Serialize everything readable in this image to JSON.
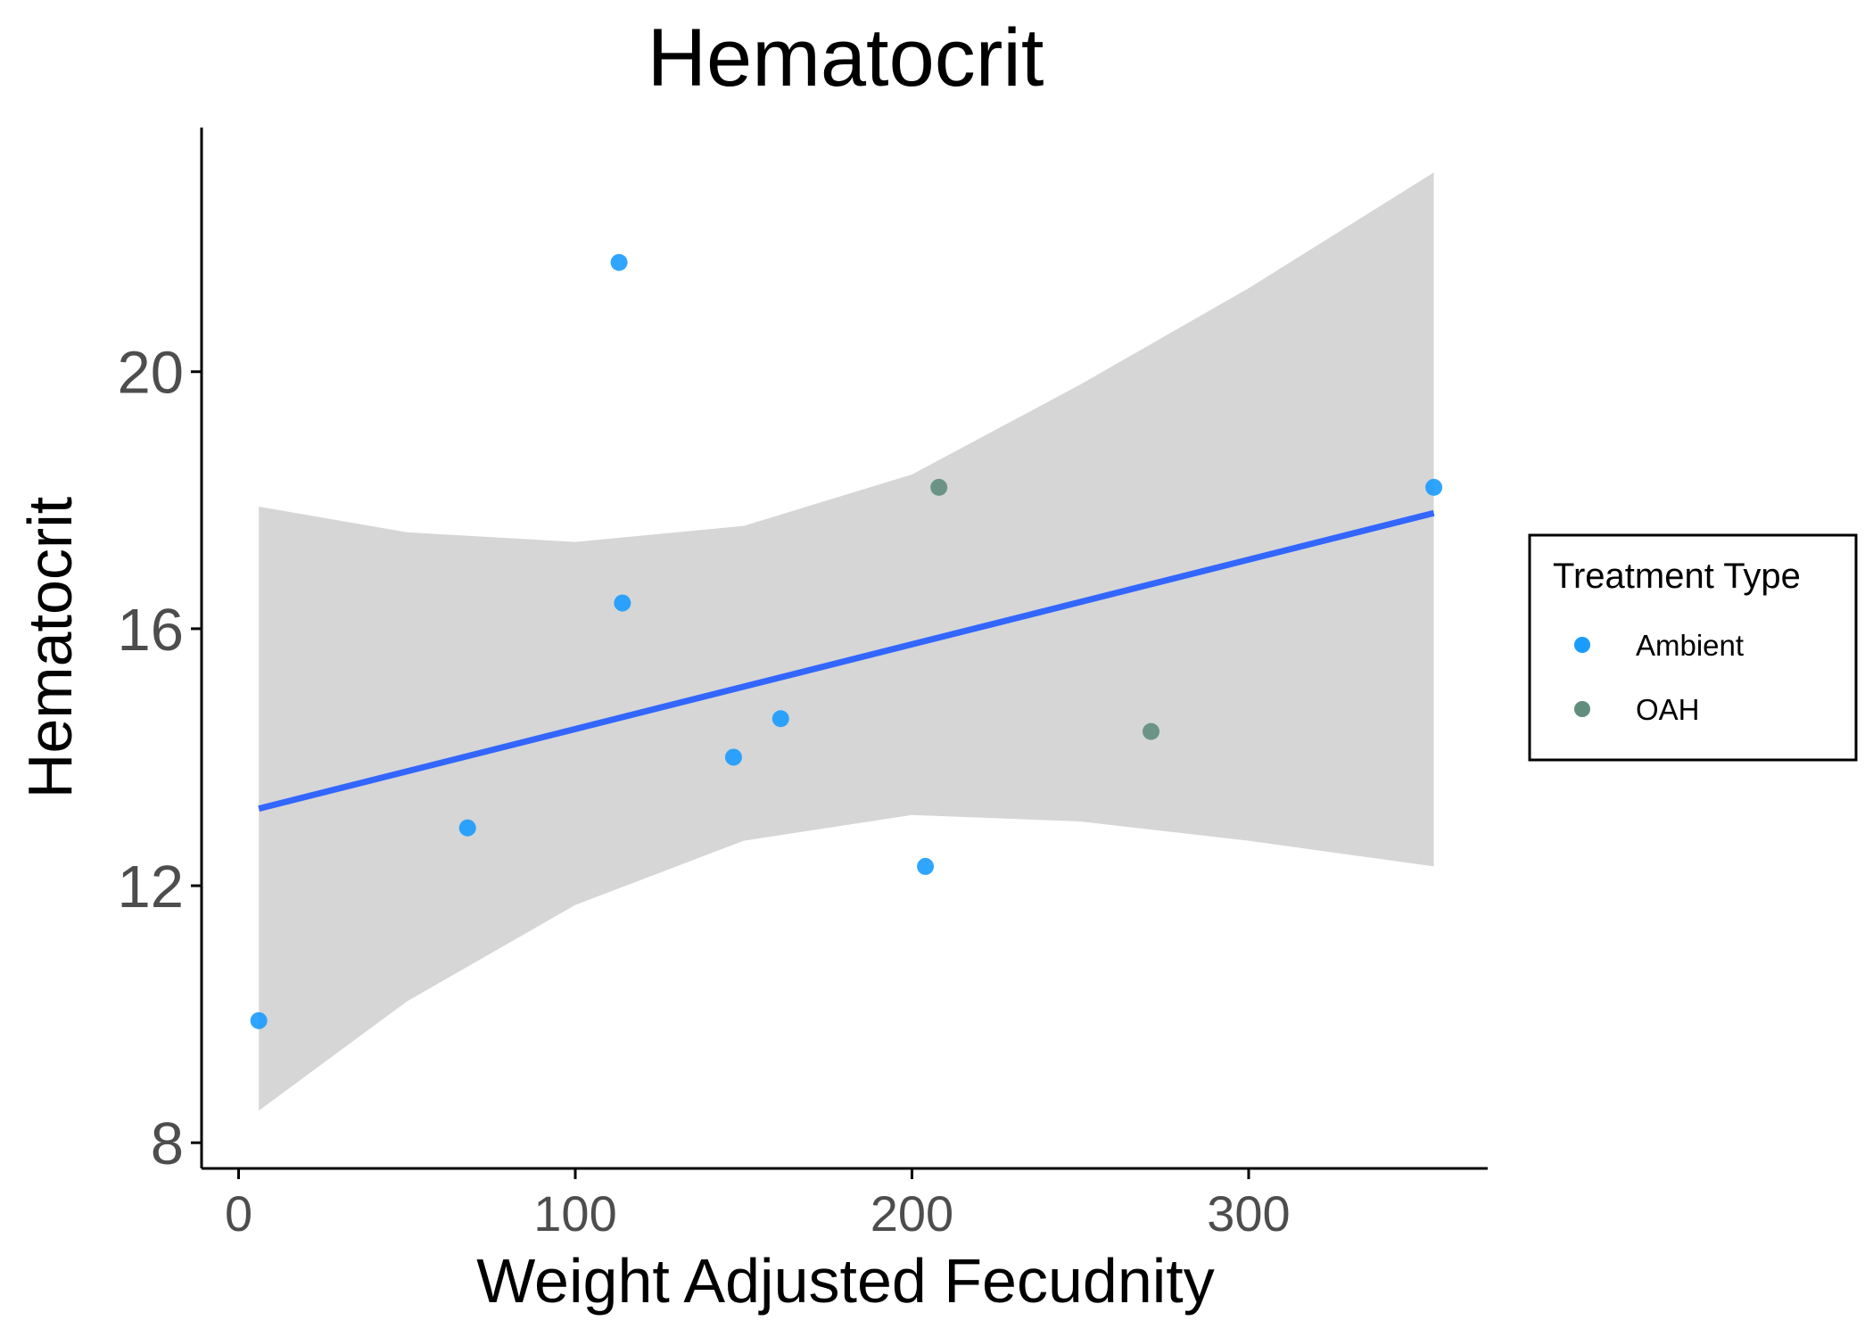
{
  "chart_data": {
    "type": "scatter",
    "title": "Hematocrit",
    "xlabel": "Weight Adjusted Fecudnity",
    "ylabel": "Hematocrit",
    "xlim": [
      -11,
      371
    ],
    "ylim": [
      7.6,
      23.8
    ],
    "xticks": [
      0,
      100,
      200,
      300
    ],
    "yticks": [
      8,
      12,
      16,
      20
    ],
    "grid": false,
    "legend": {
      "title": "Treatment Type",
      "placement": "right",
      "entries": [
        {
          "name": "Ambient",
          "color": "#1a9bff"
        },
        {
          "name": "OAH",
          "color": "#618d7d"
        }
      ]
    },
    "series": [
      {
        "name": "Ambient",
        "color": "#1a9bff",
        "points": [
          {
            "x": 6,
            "y": 9.9
          },
          {
            "x": 68,
            "y": 12.9
          },
          {
            "x": 113,
            "y": 21.7
          },
          {
            "x": 114,
            "y": 16.4
          },
          {
            "x": 147,
            "y": 14.0
          },
          {
            "x": 161,
            "y": 14.6
          },
          {
            "x": 204,
            "y": 12.3
          },
          {
            "x": 355,
            "y": 18.2
          }
        ]
      },
      {
        "name": "OAH",
        "color": "#618d7d",
        "points": [
          {
            "x": 208,
            "y": 18.2
          },
          {
            "x": 271,
            "y": 14.4
          }
        ]
      }
    ],
    "trend_line": {
      "color": "#3366ff",
      "x": [
        6,
        355
      ],
      "y": [
        13.2,
        17.8
      ]
    },
    "confidence_band": {
      "color": "#d6d6d6",
      "x": [
        6,
        50,
        100,
        150,
        200,
        250,
        300,
        355
      ],
      "upper": [
        17.9,
        17.5,
        17.35,
        17.6,
        18.4,
        19.8,
        21.3,
        23.1
      ],
      "lower": [
        8.5,
        10.2,
        11.7,
        12.7,
        13.1,
        13.0,
        12.7,
        12.3
      ]
    }
  }
}
